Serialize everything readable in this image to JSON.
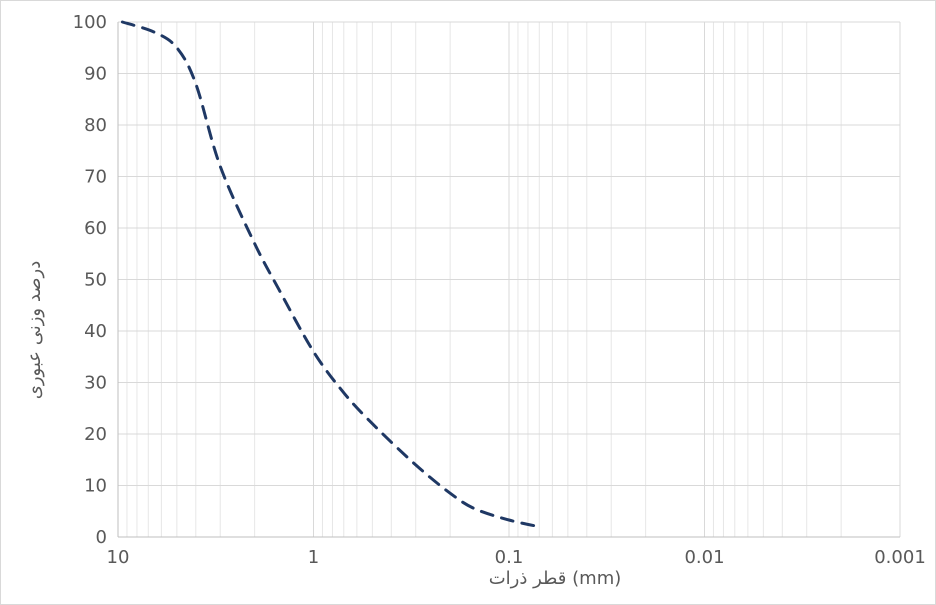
{
  "chart_data": {
    "type": "line",
    "title": "",
    "xlabel": "قطر ذرات (mm)",
    "ylabel": "درصد وزنی عبوری",
    "x_scale": "log",
    "x_reversed": true,
    "xlim": [
      10,
      0.001
    ],
    "ylim": [
      0,
      100
    ],
    "y_ticks": [
      0,
      10,
      20,
      30,
      40,
      50,
      60,
      70,
      80,
      90,
      100
    ],
    "x_ticks": [
      10,
      1,
      0.1,
      0.01,
      0.001
    ],
    "x_tick_labels": [
      "10",
      "1",
      "0.1",
      "0.01",
      "0.001"
    ],
    "grid": {
      "major": true,
      "minor_x": true
    },
    "legend": "none",
    "series": [
      {
        "line_style": "dashed",
        "color": "#1f3864",
        "x": [
          9.5,
          6.5,
          5,
          4,
          3,
          2,
          1.5,
          1,
          0.7,
          0.5,
          0.3,
          0.2,
          0.15,
          0.1,
          0.07
        ],
        "y": [
          100,
          98,
          95,
          88,
          72,
          57,
          48,
          36,
          28,
          22,
          14,
          8.5,
          5.5,
          3.3,
          2
        ]
      }
    ]
  }
}
